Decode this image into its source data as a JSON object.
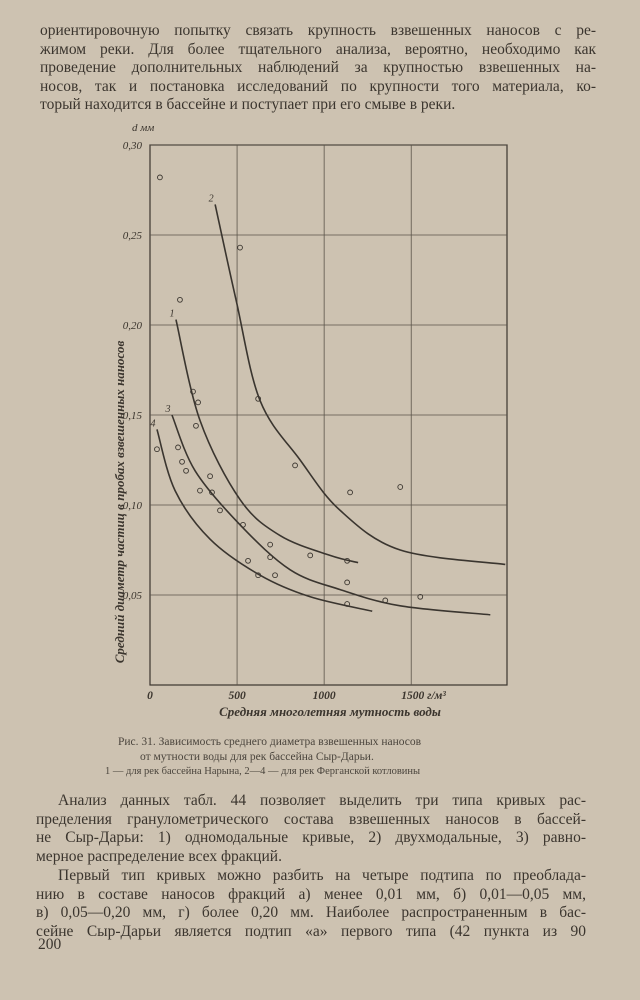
{
  "text_top": [
    "ориентировочную попытку связать крупность взвешенных наносов с ре-",
    "жимом реки. Для более тщательного анализа, вероятно, необходимо как",
    "проведение дополнительных наблюдений за крупностью взвешенных на-",
    "носов, так и постановка исследований по крупности того материала, ко-",
    "торый находится в бассейне и поступает при его смыве в реки."
  ],
  "chart_data": {
    "type": "line",
    "y_unit": "d мм",
    "ylabel": "Средний диаметр частиц в пробах взвешенных наносов",
    "xlabel": "Средняя многолетняя мутность воды",
    "xlim": [
      0,
      2050
    ],
    "ylim": [
      0,
      0.3
    ],
    "xticks": [
      0,
      500,
      1000,
      {
        "value": 1500,
        "label": "1500 г/м³"
      }
    ],
    "yticks": [
      {
        "value": 0.05,
        "label": "0,05"
      },
      {
        "value": 0.1,
        "label": "0,10"
      },
      {
        "value": 0.15,
        "label": "0,15"
      },
      {
        "value": 0.2,
        "label": "0,20"
      },
      {
        "value": 0.25,
        "label": "0,25"
      },
      {
        "value": 0.3,
        "label": "0,30"
      }
    ],
    "grid": true,
    "color": "#3a352f",
    "series": [
      {
        "name": "1",
        "x": [
          149,
          287,
          517,
          747,
          1034,
          1195
        ],
        "values": [
          0.203,
          0.147,
          0.103,
          0.083,
          0.072,
          0.068
        ]
      },
      {
        "name": "2",
        "x": [
          374,
          494,
          632,
          862,
          1092,
          1437,
          2040
        ],
        "values": [
          0.267,
          0.214,
          0.158,
          0.125,
          0.097,
          0.075,
          0.067
        ]
      },
      {
        "name": "3",
        "x": [
          126,
          259,
          517,
          805,
          1092,
          1437,
          1954
        ],
        "values": [
          0.15,
          0.119,
          0.089,
          0.064,
          0.053,
          0.044,
          0.039
        ]
      },
      {
        "name": "4",
        "x": [
          40,
          144,
          345,
          632,
          920,
          1276
        ],
        "values": [
          0.142,
          0.108,
          0.081,
          0.061,
          0.049,
          0.041
        ]
      }
    ],
    "points": {
      "x": [
        57,
        172,
        247,
        276,
        264,
        161,
        184,
        207,
        287,
        356,
        345,
        517,
        621,
        833,
        1149,
        1437,
        534,
        563,
        690,
        690,
        621,
        718,
        920,
        1132,
        1132,
        1132,
        1351,
        1552,
        402,
        40
      ],
      "y": [
        0.282,
        0.214,
        0.163,
        0.157,
        0.144,
        0.132,
        0.124,
        0.119,
        0.108,
        0.107,
        0.116,
        0.243,
        0.159,
        0.122,
        0.107,
        0.11,
        0.089,
        0.069,
        0.078,
        0.071,
        0.061,
        0.061,
        0.072,
        0.069,
        0.057,
        0.045,
        0.047,
        0.049,
        0.097,
        0.131
      ]
    }
  },
  "caption": [
    "Рис. 31. Зависимость среднего диаметра взвешенных наносов",
    "от мутности воды для рек бассейна Сыр-Дарьи.",
    "1 — для рек бассейна Нарына, 2—4 — для рек Ферганской котловины"
  ],
  "text_bottom": [
    [
      "Анализ данных табл. 44 позволяет выделить три типа кривых рас-",
      "пределения гранулометрического состава взвешенных наносов в бассей-",
      "не Сыр-Дарьи: 1) одномодальные кривые, 2) двухмодальные, 3) равно-",
      "мерное распределение всех фракций."
    ],
    [
      "Первый тип кривых можно разбить на четыре подтипа по преоблада-",
      "нию в составе наносов фракций а) менее 0,01 мм, б) 0,01—0,05 мм,",
      "в) 0,05—0,20 мм, г) более 0,20 мм. Наиболее распространенным в бас-",
      "сейне Сыр-Дарьи является подтип «а» первого типа (42 пункта из 90"
    ]
  ],
  "page_number": "200"
}
